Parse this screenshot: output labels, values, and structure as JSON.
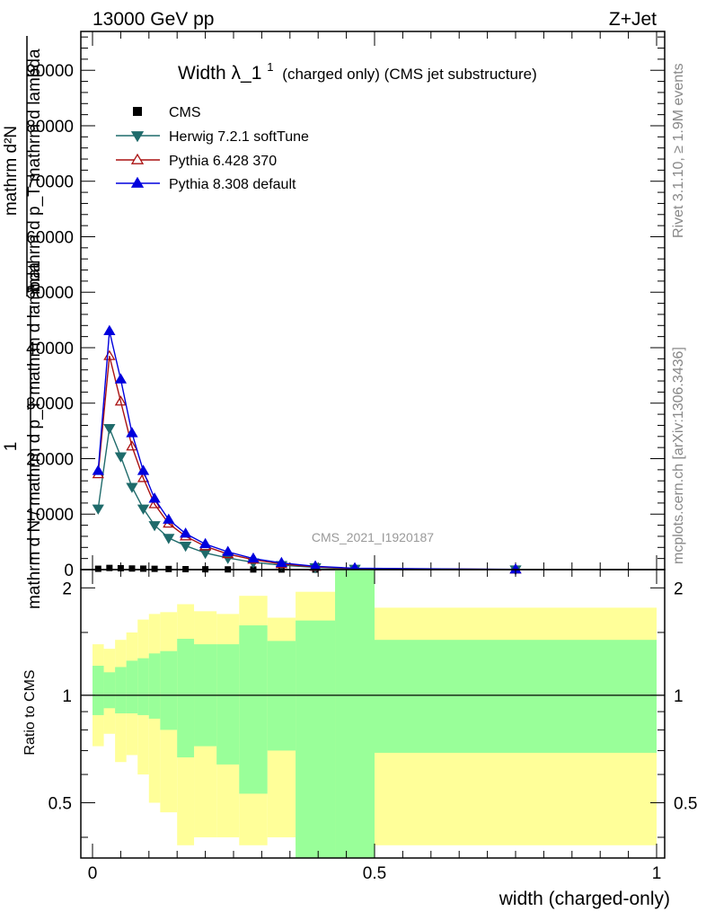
{
  "header": {
    "energy_label": "13000 GeV pp",
    "process_label": "Z+Jet"
  },
  "side_labels": {
    "rivet": "Rivet 3.1.10, ≥ 1.9M events",
    "mcplots": "mcplots.cern.ch [arXiv:1306.3436]"
  },
  "main_plot": {
    "title_main": "Width λ_1",
    "title_sup": "1",
    "title_rest": "(charged only) (CMS jet substructure)",
    "ylabel_line1": "1",
    "ylabel_line2": "mathrm d N / mathrm d p_T mathrm d lambda",
    "ylabel_line3": "mathrm d²N",
    "ylabel_line4": "mathrm d p_T mathrm d lambda",
    "watermark": "CMS_2021_I1920187"
  },
  "ratio_plot": {
    "ylabel": "Ratio to CMS",
    "xlabel": "width (charged-only)"
  },
  "colors": {
    "cms": "#000000",
    "herwig": "#1f6b6b",
    "pythia6": "#aa1111",
    "pythia8": "#0000dd",
    "band_inner": "#99ff99",
    "band_outer": "#ffff99"
  },
  "chart_data": [
    {
      "type": "line",
      "title": "Width λ_1^1 (charged only) (CMS jet substructure)",
      "xlabel": "width (charged-only)",
      "ylabel": "1 / mathrm d N / mathrm d p_T mathrm d lambda  mathrm d²N / mathrm d p_T mathrm d lambda",
      "xlim": [
        0,
        1
      ],
      "ylim": [
        0,
        97000
      ],
      "y_ticks": [
        0,
        10000,
        20000,
        30000,
        40000,
        50000,
        60000,
        70000,
        80000,
        90000
      ],
      "x_ticks": [
        0,
        0.5,
        1
      ],
      "legend_position": "top-left",
      "series": [
        {
          "name": "CMS",
          "marker": "square",
          "x": [
            0.01,
            0.03,
            0.05,
            0.07,
            0.09,
            0.11,
            0.135,
            0.165,
            0.2,
            0.24,
            0.285,
            0.335,
            0.395,
            0.465,
            0.75
          ],
          "values": [
            150,
            300,
            250,
            200,
            170,
            140,
            110,
            80,
            60,
            40,
            25,
            15,
            8,
            4,
            1
          ]
        },
        {
          "name": "Herwig 7.2.1 softTune",
          "marker": "triangle-down",
          "x": [
            0.01,
            0.03,
            0.05,
            0.07,
            0.09,
            0.11,
            0.135,
            0.165,
            0.2,
            0.24,
            0.285,
            0.335,
            0.395,
            0.465,
            0.75
          ],
          "values": [
            11000,
            25500,
            20400,
            14900,
            11000,
            8000,
            5700,
            4300,
            3000,
            2100,
            1300,
            800,
            400,
            150,
            20
          ]
        },
        {
          "name": "Pythia 6.428 370",
          "marker": "triangle-up-open",
          "x": [
            0.01,
            0.03,
            0.05,
            0.07,
            0.09,
            0.11,
            0.135,
            0.165,
            0.2,
            0.24,
            0.285,
            0.335,
            0.395,
            0.465,
            0.75
          ],
          "values": [
            17200,
            38500,
            30300,
            22200,
            16500,
            11800,
            8300,
            6000,
            4200,
            2800,
            1800,
            1000,
            500,
            200,
            30
          ]
        },
        {
          "name": "Pythia 8.308 default",
          "marker": "triangle-up",
          "x": [
            0.01,
            0.03,
            0.05,
            0.07,
            0.09,
            0.11,
            0.135,
            0.165,
            0.2,
            0.24,
            0.285,
            0.335,
            0.395,
            0.465,
            0.75
          ],
          "values": [
            17800,
            43000,
            34300,
            24600,
            17800,
            12800,
            9000,
            6500,
            4600,
            3200,
            2000,
            1200,
            600,
            250,
            40
          ]
        }
      ]
    },
    {
      "type": "area",
      "title": "",
      "xlabel": "width (charged-only)",
      "ylabel": "Ratio to CMS",
      "xlim": [
        0,
        1
      ],
      "ylim": [
        0.35,
        2.25
      ],
      "y_ticks": [
        0.5,
        1,
        2
      ],
      "x_ticks": [
        0,
        0.5,
        1
      ],
      "reference_line": 1,
      "bin_edges": [
        0,
        0.02,
        0.04,
        0.06,
        0.08,
        0.1,
        0.12,
        0.15,
        0.18,
        0.22,
        0.26,
        0.31,
        0.36,
        0.43,
        0.5,
        1.0
      ],
      "series": [
        {
          "name": "",
          "lower": [
            0.88,
            0.92,
            0.89,
            0.89,
            0.88,
            0.86,
            0.8,
            0.67,
            0.72,
            0.64,
            0.53,
            0.7,
            0.33,
            0.33,
            0.69
          ],
          "upper": [
            1.21,
            1.16,
            1.2,
            1.25,
            1.27,
            1.31,
            1.33,
            1.44,
            1.39,
            1.39,
            1.57,
            1.42,
            1.62,
            2.3,
            1.43
          ]
        },
        {
          "name": "",
          "lower": [
            0.72,
            0.78,
            0.65,
            0.68,
            0.6,
            0.5,
            0.47,
            0.38,
            0.4,
            0.4,
            0.38,
            0.4,
            0.38,
            0.33,
            0.38
          ],
          "upper": [
            1.39,
            1.35,
            1.43,
            1.5,
            1.63,
            1.69,
            1.71,
            1.8,
            1.72,
            1.69,
            1.9,
            1.65,
            1.95,
            2.3,
            1.76
          ]
        }
      ]
    }
  ]
}
